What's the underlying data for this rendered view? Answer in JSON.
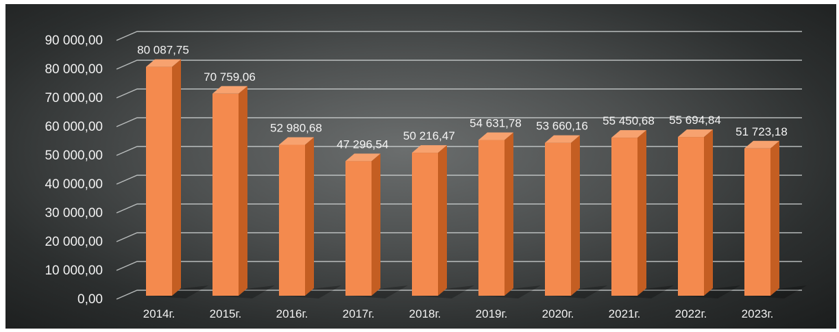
{
  "chart_data": {
    "type": "bar",
    "categories": [
      "2014г.",
      "2015г.",
      "2016г.",
      "2017г.",
      "2018г.",
      "2019г.",
      "2020г.",
      "2021г.",
      "2022г.",
      "2023г."
    ],
    "values": [
      80087.75,
      70759.06,
      52980.68,
      47296.54,
      50216.47,
      54631.78,
      53660.16,
      55450.68,
      55694.84,
      51723.18
    ],
    "data_labels": [
      "80 087,75",
      "70 759,06",
      "52 980,68",
      "47 296,54",
      "50 216,47",
      "54 631,78",
      "53 660,16",
      "55 450,68",
      "55 694,84",
      "51 723,18"
    ],
    "yticks": [
      "0,00",
      "10 000,00",
      "20 000,00",
      "30 000,00",
      "40 000,00",
      "50 000,00",
      "60 000,00",
      "70 000,00",
      "80 000,00",
      "90 000,00"
    ],
    "ylim": [
      0,
      90000
    ],
    "grid": true,
    "style": "3d-column",
    "colors": {
      "bar_front": "#f48a4e",
      "bar_side": "#c45e22",
      "bar_top": "#f7a26f",
      "background": "#4d5050",
      "grid": "#cfd2d2",
      "text": "#f2f2f2"
    }
  }
}
